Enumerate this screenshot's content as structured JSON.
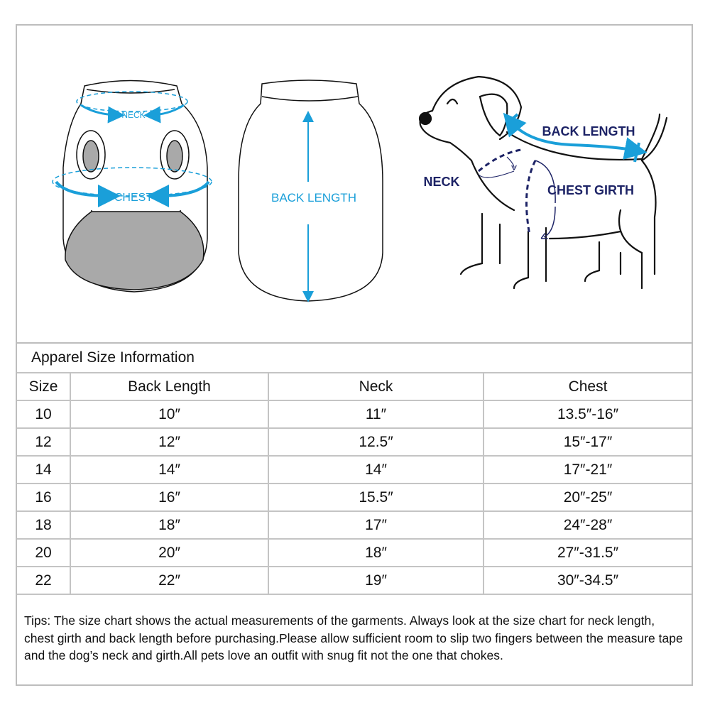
{
  "illustration": {
    "front_labels": {
      "neck": "NECK",
      "chest": "CHEST"
    },
    "back_label": "BACK LENGTH",
    "dog_labels": {
      "back_length": "BACK LENGTH",
      "neck": "NECK",
      "chest_girth": "CHEST GIRTH"
    },
    "colors": {
      "blue": "#1a9fd9",
      "navy": "#1d2366",
      "gray": "#a9a9a9"
    }
  },
  "table": {
    "title": "Apparel Size Information",
    "headers": [
      "Size",
      "Back Length",
      "Neck",
      "Chest"
    ],
    "rows": [
      [
        "10",
        "10″",
        "11″",
        "13.5″-16″"
      ],
      [
        "12",
        "12″",
        "12.5″",
        "15″-17″"
      ],
      [
        "14",
        "14″",
        "14″",
        "17″-21″"
      ],
      [
        "16",
        "16″",
        "15.5″",
        "20″-25″"
      ],
      [
        "18",
        "18″",
        "17″",
        "24″-28″"
      ],
      [
        "20",
        "20″",
        "18″",
        "27″-31.5″"
      ],
      [
        "22",
        "22″",
        "19″",
        "30″-34.5″"
      ]
    ]
  },
  "tips": "Tips:  The size chart shows the actual measurements of the  garments.  Always look at the size chart for neck length, chest girth and back length before purchasing.Please allow sufficient room to slip two fingers between the measure tape and the dog’s neck and girth.All pets love an outfit with snug fit not the one that chokes."
}
